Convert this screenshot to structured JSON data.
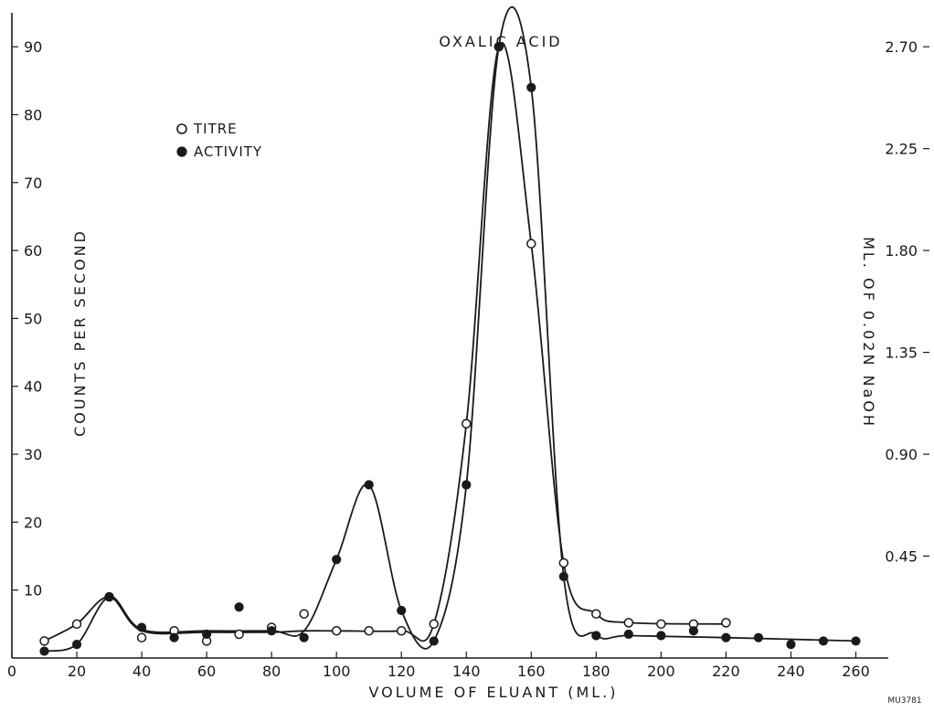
{
  "chart_data": {
    "type": "line",
    "title": "OXALIC ACID",
    "xlabel": "VOLUME OF ELUANT (ML.)",
    "ylabel": "COUNTS PER SECOND",
    "y2label": "ML. OF 0.02N NaOH",
    "xlim": [
      0,
      270
    ],
    "ylim": [
      0,
      95
    ],
    "y2lim": [
      0,
      2.85
    ],
    "x_ticks": [
      "0",
      "20",
      "40",
      "60",
      "80",
      "100",
      "120",
      "140",
      "160",
      "180",
      "200",
      "220",
      "240",
      "260"
    ],
    "y_ticks": [
      "10",
      "20",
      "30",
      "40",
      "50",
      "60",
      "70",
      "80",
      "90"
    ],
    "y2_ticks": [
      "0.45",
      "0.90",
      "1.35",
      "1.80",
      "2.25",
      "2.70"
    ],
    "legend_position": "top-left",
    "series": [
      {
        "name": "TITRE",
        "marker": "open-circle",
        "x": [
          10,
          20,
          30,
          40,
          50,
          60,
          70,
          80,
          90,
          100,
          110,
          120,
          130,
          140,
          150,
          160,
          170,
          180,
          190,
          200,
          210,
          220
        ],
        "y": [
          2.5,
          5,
          9,
          3,
          4,
          2.5,
          3.5,
          4.5,
          6.5,
          4,
          4,
          4,
          5,
          34.5,
          90,
          61,
          14,
          6.5,
          5.2,
          5,
          5,
          5.2
        ]
      },
      {
        "name": "ACTIVITY",
        "marker": "filled-circle",
        "x": [
          10,
          20,
          30,
          40,
          50,
          60,
          70,
          80,
          90,
          100,
          110,
          120,
          130,
          140,
          150,
          160,
          170,
          180,
          190,
          200,
          210,
          220,
          230,
          240,
          250,
          260
        ],
        "y": [
          1,
          2,
          9,
          4.5,
          3,
          3.5,
          7.5,
          4,
          3,
          14.5,
          25.5,
          7,
          2.5,
          25.5,
          90,
          84,
          12,
          3.3,
          3.5,
          3.3,
          4,
          3,
          3,
          2,
          2.5,
          2.5
        ]
      }
    ]
  },
  "annotation": {
    "code": "MU3781"
  }
}
